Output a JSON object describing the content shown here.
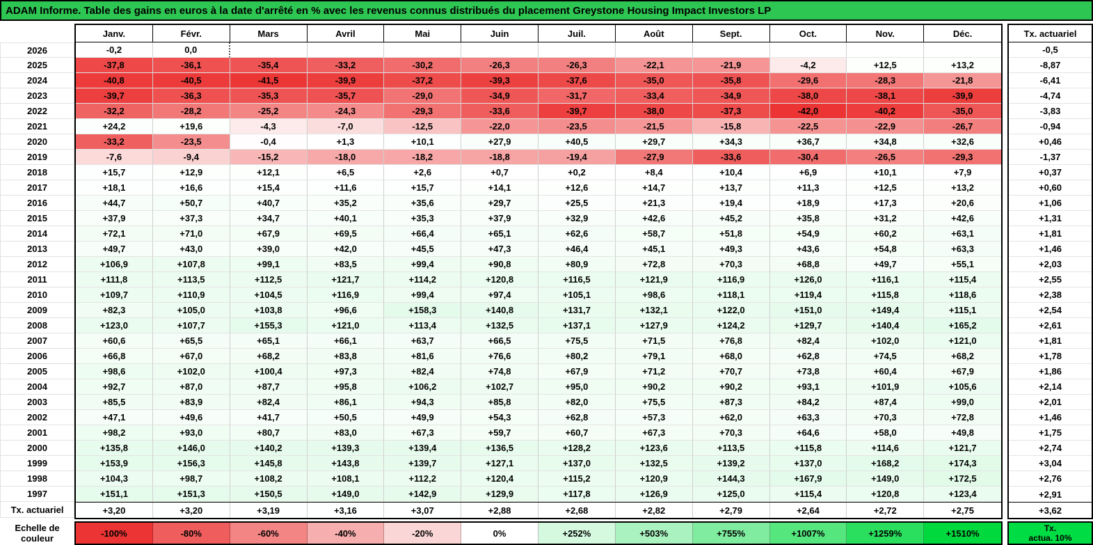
{
  "title": "ADAM Informe. Table des gains en euros à la date d'arrêté en % avec les revenus connus distribués du placement Greystone Housing Impact Investors LP",
  "chart_data": {
    "type": "heatmap",
    "title": "Table des gains en euros à la date d'arrêté en %",
    "columns": [
      "Janv.",
      "Févr.",
      "Mars",
      "Avril",
      "Mai",
      "Juin",
      "Juil.",
      "Août",
      "Sept.",
      "Oct.",
      "Nov.",
      "Déc."
    ],
    "tx_column_header": "Tx. actuariel",
    "rows": [
      {
        "year": "2026",
        "values": [
          "-0,2",
          "0,0",
          "",
          "",
          "",
          "",
          "",
          "",
          "",
          "",
          "",
          ""
        ],
        "tx": "-0,5"
      },
      {
        "year": "2025",
        "values": [
          "-37,8",
          "-36,1",
          "-35,4",
          "-33,2",
          "-30,2",
          "-26,3",
          "-26,3",
          "-22,1",
          "-21,9",
          "-4,2",
          "+12,5",
          "+13,2"
        ],
        "tx": "-8,87"
      },
      {
        "year": "2024",
        "values": [
          "-40,8",
          "-40,5",
          "-41,5",
          "-39,9",
          "-37,2",
          "-39,3",
          "-37,6",
          "-35,0",
          "-35,8",
          "-29,6",
          "-28,3",
          "-21,8"
        ],
        "tx": "-6,41"
      },
      {
        "year": "2023",
        "values": [
          "-39,7",
          "-36,3",
          "-35,3",
          "-35,7",
          "-29,0",
          "-34,9",
          "-31,7",
          "-33,4",
          "-34,9",
          "-38,0",
          "-38,1",
          "-39,9"
        ],
        "tx": "-4,74"
      },
      {
        "year": "2022",
        "values": [
          "-32,2",
          "-28,2",
          "-25,2",
          "-24,3",
          "-29,3",
          "-33,6",
          "-39,7",
          "-38,0",
          "-37,3",
          "-42,0",
          "-40,2",
          "-35,0"
        ],
        "tx": "-3,83"
      },
      {
        "year": "2021",
        "values": [
          "+24,2",
          "+19,6",
          "-4,3",
          "-7,0",
          "-12,5",
          "-22,0",
          "-23,5",
          "-21,5",
          "-15,8",
          "-22,5",
          "-22,9",
          "-26,7"
        ],
        "tx": "-0,94"
      },
      {
        "year": "2020",
        "values": [
          "-33,2",
          "-23,5",
          "-0,4",
          "+1,3",
          "+10,1",
          "+27,9",
          "+40,5",
          "+29,7",
          "+34,3",
          "+36,7",
          "+34,8",
          "+32,6"
        ],
        "tx": "+0,46"
      },
      {
        "year": "2019",
        "values": [
          "-7,6",
          "-9,4",
          "-15,2",
          "-18,0",
          "-18,2",
          "-18,8",
          "-19,4",
          "-27,9",
          "-33,6",
          "-30,4",
          "-26,5",
          "-29,3"
        ],
        "tx": "-1,37"
      },
      {
        "year": "2018",
        "values": [
          "+15,7",
          "+12,9",
          "+12,1",
          "+6,5",
          "+2,6",
          "+0,7",
          "+0,2",
          "+8,4",
          "+10,4",
          "+6,9",
          "+10,1",
          "+7,9"
        ],
        "tx": "+0,37"
      },
      {
        "year": "2017",
        "values": [
          "+18,1",
          "+16,6",
          "+15,4",
          "+11,6",
          "+15,7",
          "+14,1",
          "+12,6",
          "+14,7",
          "+13,7",
          "+11,3",
          "+12,5",
          "+13,2"
        ],
        "tx": "+0,60"
      },
      {
        "year": "2016",
        "values": [
          "+44,7",
          "+50,7",
          "+40,7",
          "+35,2",
          "+35,6",
          "+29,7",
          "+25,5",
          "+21,3",
          "+19,4",
          "+18,9",
          "+17,3",
          "+20,6"
        ],
        "tx": "+1,06"
      },
      {
        "year": "2015",
        "values": [
          "+37,9",
          "+37,3",
          "+34,7",
          "+40,1",
          "+35,3",
          "+37,9",
          "+32,9",
          "+42,6",
          "+45,2",
          "+35,8",
          "+31,2",
          "+42,6"
        ],
        "tx": "+1,31"
      },
      {
        "year": "2014",
        "values": [
          "+72,1",
          "+71,0",
          "+67,9",
          "+69,5",
          "+66,4",
          "+65,1",
          "+62,6",
          "+58,7",
          "+51,8",
          "+54,9",
          "+60,2",
          "+63,1"
        ],
        "tx": "+1,81"
      },
      {
        "year": "2013",
        "values": [
          "+49,7",
          "+43,0",
          "+39,0",
          "+42,0",
          "+45,5",
          "+47,3",
          "+46,4",
          "+45,1",
          "+49,3",
          "+43,6",
          "+54,8",
          "+63,3"
        ],
        "tx": "+1,46"
      },
      {
        "year": "2012",
        "values": [
          "+106,9",
          "+107,8",
          "+99,1",
          "+83,5",
          "+99,4",
          "+90,8",
          "+80,9",
          "+72,8",
          "+70,3",
          "+68,8",
          "+49,7",
          "+55,1"
        ],
        "tx": "+2,03"
      },
      {
        "year": "2011",
        "values": [
          "+111,8",
          "+113,5",
          "+112,5",
          "+121,7",
          "+114,2",
          "+120,8",
          "+116,5",
          "+121,9",
          "+116,9",
          "+126,0",
          "+116,1",
          "+115,4"
        ],
        "tx": "+2,55"
      },
      {
        "year": "2010",
        "values": [
          "+109,7",
          "+110,9",
          "+104,5",
          "+116,9",
          "+99,4",
          "+97,4",
          "+105,1",
          "+98,6",
          "+118,1",
          "+119,4",
          "+115,8",
          "+118,6"
        ],
        "tx": "+2,38"
      },
      {
        "year": "2009",
        "values": [
          "+82,3",
          "+105,0",
          "+103,8",
          "+96,6",
          "+158,3",
          "+140,8",
          "+131,7",
          "+132,1",
          "+122,0",
          "+151,0",
          "+149,4",
          "+115,1"
        ],
        "tx": "+2,54"
      },
      {
        "year": "2008",
        "values": [
          "+123,0",
          "+107,7",
          "+155,3",
          "+121,0",
          "+113,4",
          "+132,5",
          "+137,1",
          "+127,9",
          "+124,2",
          "+129,7",
          "+140,4",
          "+165,2"
        ],
        "tx": "+2,61"
      },
      {
        "year": "2007",
        "values": [
          "+60,6",
          "+65,5",
          "+65,1",
          "+66,1",
          "+63,7",
          "+66,5",
          "+75,5",
          "+71,5",
          "+76,8",
          "+82,4",
          "+102,0",
          "+121,0"
        ],
        "tx": "+1,81"
      },
      {
        "year": "2006",
        "values": [
          "+66,8",
          "+67,0",
          "+68,2",
          "+83,8",
          "+81,6",
          "+76,6",
          "+80,2",
          "+79,1",
          "+68,0",
          "+62,8",
          "+74,5",
          "+68,2"
        ],
        "tx": "+1,78"
      },
      {
        "year": "2005",
        "values": [
          "+98,6",
          "+102,0",
          "+100,4",
          "+97,3",
          "+82,4",
          "+74,8",
          "+67,9",
          "+71,2",
          "+70,7",
          "+73,8",
          "+60,4",
          "+67,9"
        ],
        "tx": "+1,86"
      },
      {
        "year": "2004",
        "values": [
          "+92,7",
          "+87,0",
          "+87,7",
          "+95,8",
          "+106,2",
          "+102,7",
          "+95,0",
          "+90,2",
          "+90,2",
          "+93,1",
          "+101,9",
          "+105,6"
        ],
        "tx": "+2,14"
      },
      {
        "year": "2003",
        "values": [
          "+85,5",
          "+83,9",
          "+82,4",
          "+86,1",
          "+94,3",
          "+85,8",
          "+82,0",
          "+75,5",
          "+87,3",
          "+84,2",
          "+87,4",
          "+99,0"
        ],
        "tx": "+2,01"
      },
      {
        "year": "2002",
        "values": [
          "+47,1",
          "+49,6",
          "+41,7",
          "+50,5",
          "+49,9",
          "+54,3",
          "+62,8",
          "+57,3",
          "+62,0",
          "+63,3",
          "+70,3",
          "+72,8"
        ],
        "tx": "+1,46"
      },
      {
        "year": "2001",
        "values": [
          "+98,2",
          "+93,0",
          "+80,7",
          "+83,0",
          "+67,3",
          "+59,7",
          "+60,7",
          "+67,3",
          "+70,3",
          "+64,6",
          "+58,0",
          "+49,8"
        ],
        "tx": "+1,75"
      },
      {
        "year": "2000",
        "values": [
          "+135,8",
          "+146,0",
          "+140,2",
          "+139,3",
          "+139,4",
          "+136,5",
          "+128,2",
          "+123,6",
          "+113,5",
          "+115,8",
          "+114,6",
          "+121,7"
        ],
        "tx": "+2,74"
      },
      {
        "year": "1999",
        "values": [
          "+153,9",
          "+156,3",
          "+145,8",
          "+143,8",
          "+139,7",
          "+127,1",
          "+137,0",
          "+132,5",
          "+139,2",
          "+137,0",
          "+168,2",
          "+174,3"
        ],
        "tx": "+3,04"
      },
      {
        "year": "1998",
        "values": [
          "+104,3",
          "+98,7",
          "+108,2",
          "+108,1",
          "+112,2",
          "+120,4",
          "+115,2",
          "+120,9",
          "+144,3",
          "+167,9",
          "+149,0",
          "+172,5"
        ],
        "tx": "+2,76"
      },
      {
        "year": "1997",
        "values": [
          "+151,1",
          "+151,3",
          "+150,5",
          "+149,0",
          "+142,9",
          "+129,9",
          "+117,8",
          "+126,9",
          "+125,0",
          "+115,4",
          "+120,8",
          "+123,4"
        ],
        "tx": "+2,91"
      }
    ],
    "footer": {
      "label": "Tx. actuariel",
      "values": [
        "+3,20",
        "+3,20",
        "+3,19",
        "+3,16",
        "+3,07",
        "+2,88",
        "+2,68",
        "+2,82",
        "+2,79",
        "+2,64",
        "+2,72",
        "+2,75"
      ],
      "tx": "+3,62"
    },
    "current_cell": {
      "row_index": 0,
      "col_index": 1
    }
  },
  "legend": {
    "label_line1": "Echelle de",
    "label_line2": "couleur",
    "cells": [
      "-100%",
      "-80%",
      "-60%",
      "-40%",
      "-20%",
      "0%",
      "+252%",
      "+503%",
      "+755%",
      "+1007%",
      "+1259%",
      "+1510%"
    ],
    "tx_line1": "Tx.",
    "tx_line2": "actua. 10%"
  },
  "colors": {
    "title_bg": "#2ec653",
    "negative_full": "#ec3434",
    "positive_full": "#00d93e",
    "legend_tx_bg": "#00dc43",
    "table_neg_limit": 42,
    "table_pos_limit": 1510,
    "legend_neg_limit": 100,
    "legend_pos_limit": 1510
  }
}
